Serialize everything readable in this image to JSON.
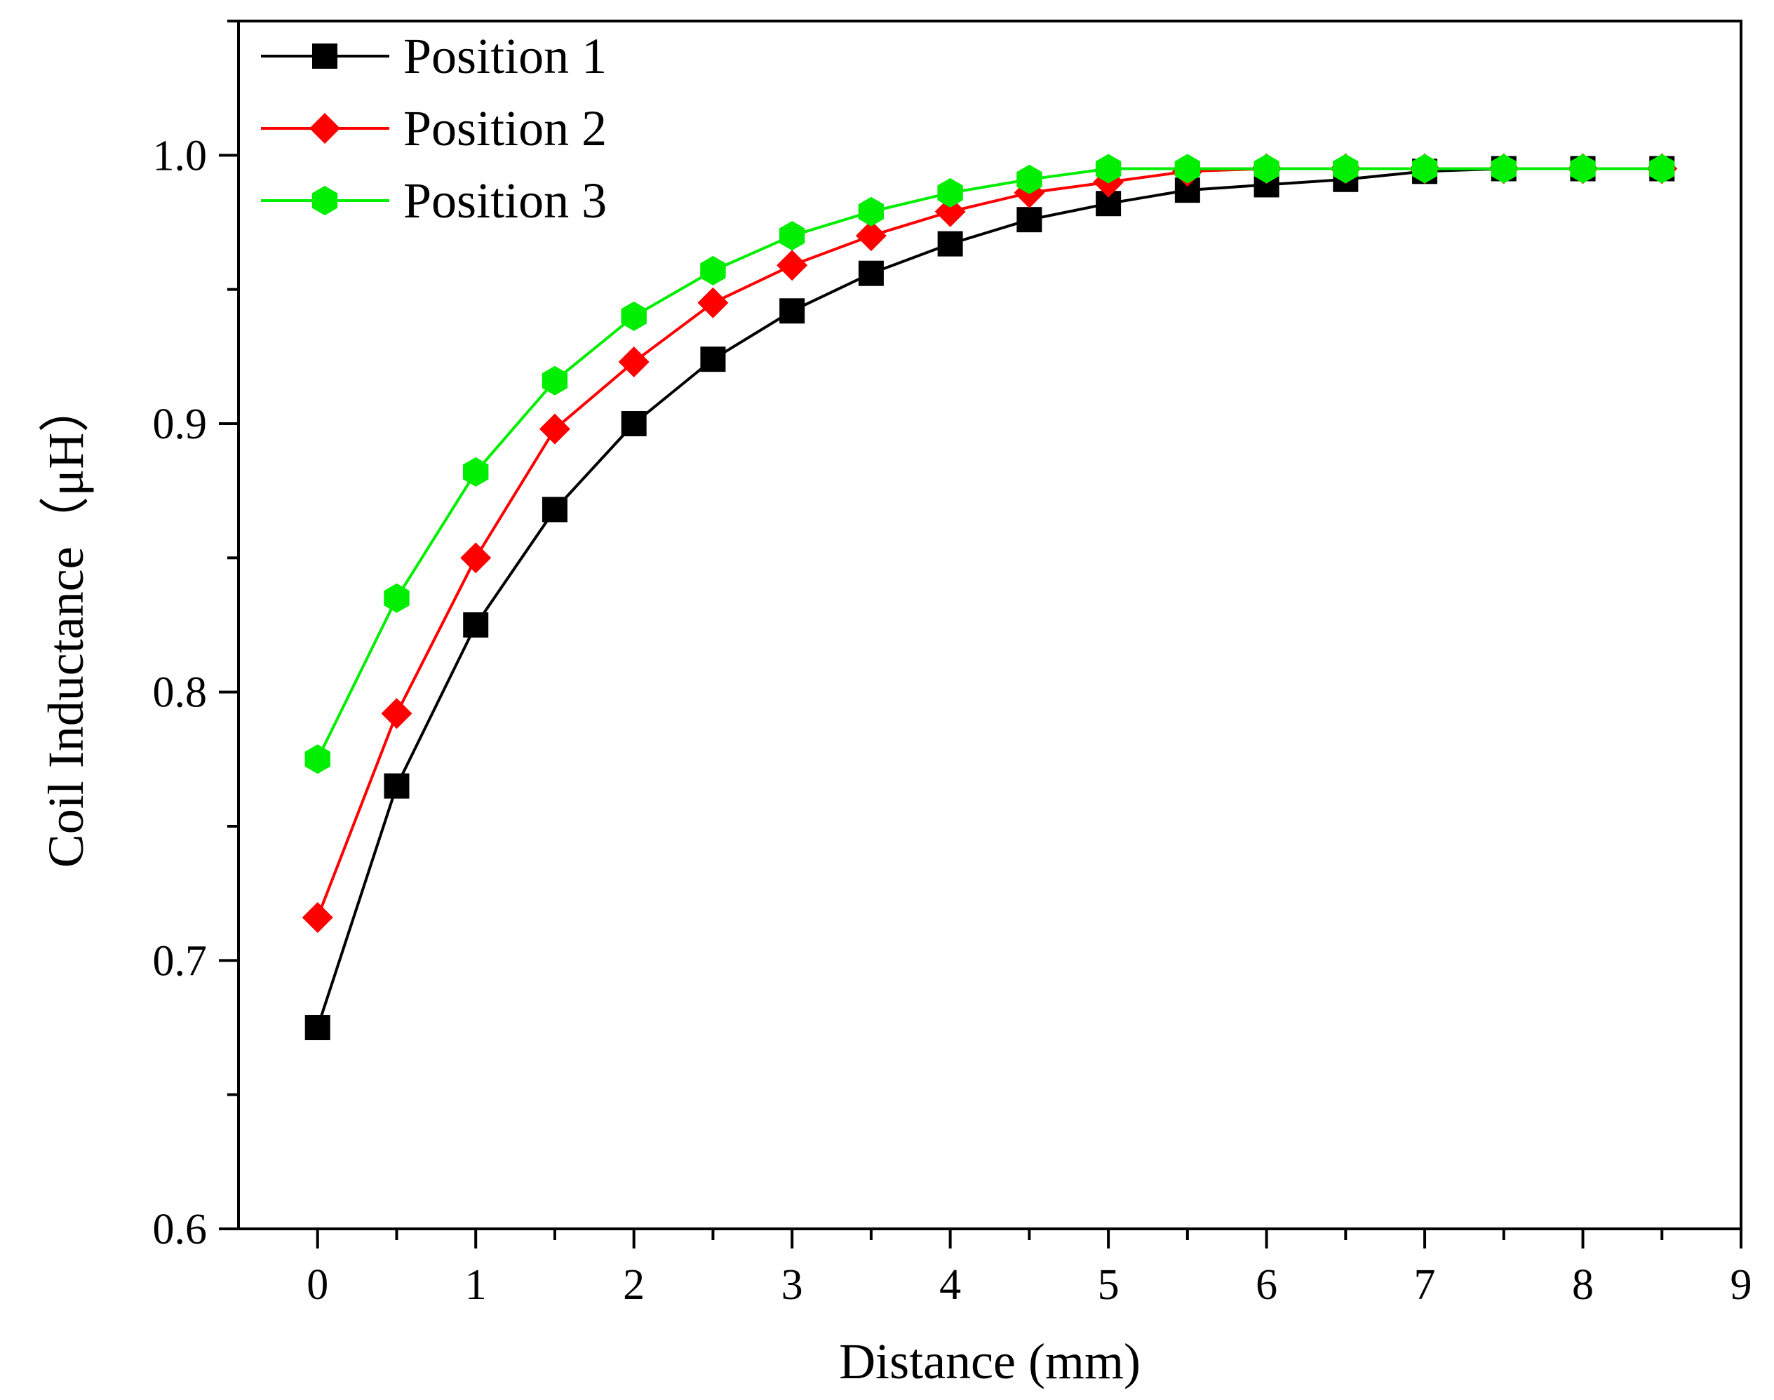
{
  "chart_data": {
    "type": "line",
    "title": "",
    "xlabel": "Distance (mm)",
    "ylabel": "Coil Inductance（μH）",
    "xlim": [
      -0.5,
      9
    ],
    "ylim": [
      0.6,
      1.05
    ],
    "x_ticks": [
      0,
      1,
      2,
      3,
      4,
      5,
      6,
      7,
      8,
      9
    ],
    "x_tick_labels": [
      "0",
      "1",
      "2",
      "3",
      "4",
      "5",
      "6",
      "7",
      "8",
      "9"
    ],
    "y_ticks": [
      0.6,
      0.7,
      0.8,
      0.9,
      1.0
    ],
    "y_tick_labels": [
      "0.6",
      "0.7",
      "0.8",
      "0.9",
      "1.0"
    ],
    "grid": false,
    "legend_position": "top-left",
    "x": [
      0,
      0.5,
      1,
      1.5,
      2,
      2.5,
      3,
      3.5,
      4,
      4.5,
      5,
      5.5,
      6,
      6.5,
      7,
      7.5,
      8,
      8.5
    ],
    "series": [
      {
        "name": "Position 1",
        "color": "#000000",
        "marker": "square",
        "values": [
          0.675,
          0.765,
          0.825,
          0.868,
          0.9,
          0.924,
          0.942,
          0.956,
          0.967,
          0.976,
          0.982,
          0.987,
          0.989,
          0.991,
          0.994,
          0.995,
          0.995,
          0.995
        ]
      },
      {
        "name": "Position 2",
        "color": "#ff0000",
        "marker": "diamond",
        "values": [
          0.716,
          0.792,
          0.85,
          0.898,
          0.923,
          0.945,
          0.959,
          0.97,
          0.979,
          0.986,
          0.99,
          0.994,
          0.995,
          0.995,
          0.995,
          0.995,
          0.995,
          0.995
        ]
      },
      {
        "name": "Position 3",
        "color": "#00ee00",
        "marker": "hexagon",
        "values": [
          0.775,
          0.835,
          0.882,
          0.916,
          0.94,
          0.957,
          0.97,
          0.979,
          0.986,
          0.991,
          0.995,
          0.995,
          0.995,
          0.995,
          0.995,
          0.995,
          0.995,
          0.995
        ]
      }
    ]
  }
}
